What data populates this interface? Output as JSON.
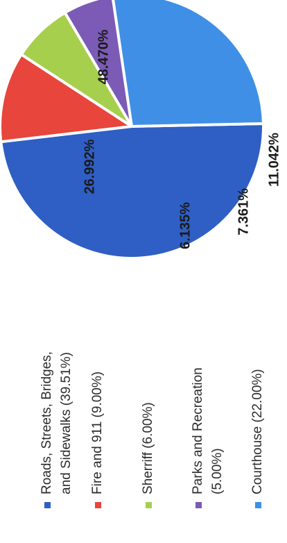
{
  "chart_data": {
    "type": "pie",
    "title": "",
    "series": [
      {
        "name": "",
        "values": [
          {
            "label": "Roads, Streets, Bridges, and Sidewalks (39.51%)",
            "value": 48.47,
            "display": "48.470%",
            "color": "#2f5fc4"
          },
          {
            "label": "Fire and 911 (9.00%)",
            "value": 11.042,
            "display": "11.042%",
            "color": "#e8453c"
          },
          {
            "label": "Sherriff (6.00%)",
            "value": 7.361,
            "display": "7.361%",
            "color": "#a6cf4d"
          },
          {
            "label": "Parks and Recreation (5.00%)",
            "value": 6.135,
            "display": "6.135%",
            "color": "#7b5bb5"
          },
          {
            "label": "Courthouse (22.00%)",
            "value": 26.992,
            "display": "26.992%",
            "color": "#3f8fe6"
          }
        ]
      }
    ],
    "legend": {
      "placement": "bottom",
      "orientation": "rotated-90",
      "items": [
        {
          "lines": [
            "Roads, Streets, Bridges,",
            "and Sidewalks (39.51%)"
          ],
          "color": "#2f5fc4"
        },
        {
          "lines": [
            "Fire and 911 (9.00%)"
          ],
          "color": "#e8453c"
        },
        {
          "lines": [
            "Sherriff (6.00%)"
          ],
          "color": "#a6cf4d"
        },
        {
          "lines": [
            "Parks and Recreation",
            "(5.00%)"
          ],
          "color": "#7b5bb5"
        },
        {
          "lines": [
            "Courthouse (22.00%)"
          ],
          "color": "#3f8fe6"
        }
      ]
    }
  }
}
